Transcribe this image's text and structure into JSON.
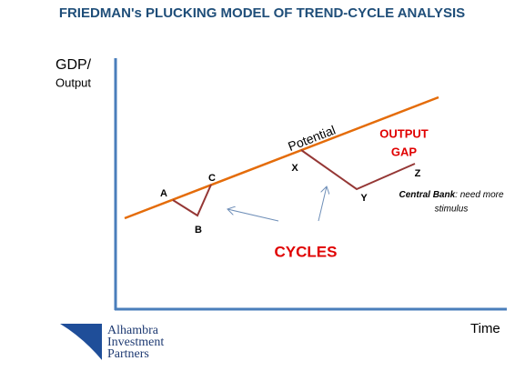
{
  "title": "FRIEDMAN's PLUCKING MODEL OF TREND-CYCLE ANALYSIS",
  "axes": {
    "y_label_line1": "GDP/",
    "y_label_line2": "Output",
    "x_label": "Time"
  },
  "trend_label": "Potential",
  "points": {
    "A": "A",
    "B": "B",
    "C": "C",
    "X": "X",
    "Y": "Y",
    "Z": "Z"
  },
  "output_gap": {
    "line1": "OUTPUT",
    "line2": "GAP"
  },
  "note": {
    "emphasis": "Central Bank",
    "rest": ": need more",
    "line2": "stimulus"
  },
  "cycles_label": "CYCLES",
  "logo": {
    "line1": "Alhambra",
    "line2": "Investment",
    "line3": "Partners"
  }
}
